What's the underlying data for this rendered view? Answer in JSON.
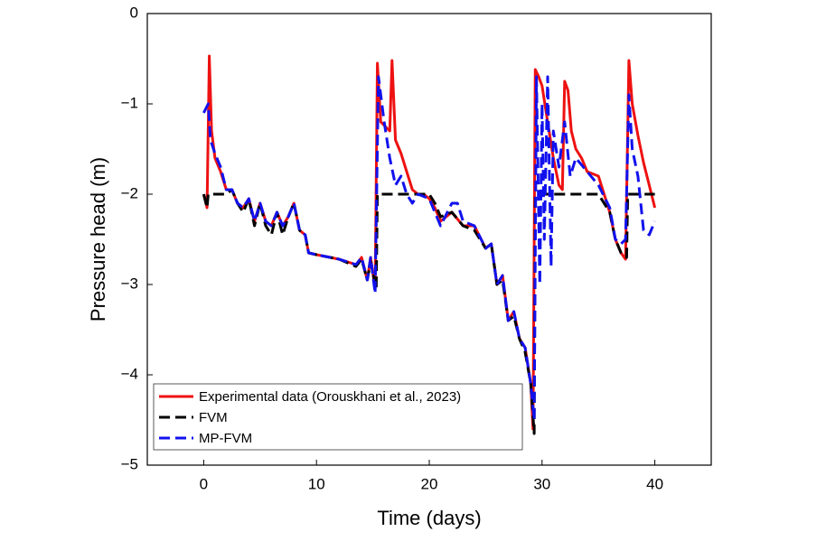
{
  "chart_data": {
    "type": "line",
    "x_label": "Time (days)",
    "y_label": "Pressure head (m)",
    "xlim": [
      -5,
      45
    ],
    "ylim": [
      -5,
      0
    ],
    "xticks": [
      0,
      10,
      20,
      30,
      40
    ],
    "yticks": [
      {
        "value": -5,
        "label": "−5"
      },
      {
        "value": -4,
        "label": "−4"
      },
      {
        "value": -3,
        "label": "−3"
      },
      {
        "value": -2,
        "label": "−2"
      },
      {
        "value": -1,
        "label": "−1"
      },
      0
    ],
    "legend": "lower left",
    "series": [
      {
        "name": "Experimental data (Orouskhani et al., 2023)",
        "color": "#ee1111",
        "dashed": false,
        "x": [
          0,
          0.3,
          0.5,
          0.7,
          1,
          1.5,
          2,
          2.5,
          3,
          3.5,
          4,
          4.5,
          5,
          5.5,
          6,
          6.5,
          7,
          7.5,
          8,
          8.5,
          9,
          9.3,
          10,
          12,
          13.5,
          14,
          14.5,
          14.8,
          15.2,
          15.4,
          15.7,
          16.5,
          16.7,
          17,
          17.5,
          18,
          18.5,
          19,
          19.5,
          20,
          20.5,
          21,
          22,
          23,
          24,
          25,
          25.5,
          26,
          26.5,
          27,
          27.5,
          28,
          28.5,
          29,
          29.2,
          29.4,
          29.7,
          30,
          30.5,
          31,
          31.5,
          31.8,
          32,
          32.3,
          32.6,
          33,
          33.5,
          34,
          35,
          36,
          36.5,
          37,
          37.4,
          37.7,
          38,
          38.5,
          39,
          39.5,
          40
        ],
        "values": [
          -2.0,
          -2.15,
          -0.47,
          -1.3,
          -1.6,
          -1.75,
          -1.95,
          -1.95,
          -2.1,
          -2.15,
          -2.05,
          -2.3,
          -2.1,
          -2.3,
          -2.35,
          -2.2,
          -2.35,
          -2.25,
          -2.1,
          -2.4,
          -2.45,
          -2.65,
          -2.67,
          -2.72,
          -2.78,
          -2.7,
          -2.95,
          -2.7,
          -3.05,
          -0.55,
          -1.2,
          -1.3,
          -0.52,
          -1.4,
          -1.55,
          -1.75,
          -1.95,
          -2.0,
          -2.0,
          -2.05,
          -2.15,
          -2.3,
          -2.2,
          -2.35,
          -2.35,
          -2.6,
          -2.55,
          -3.0,
          -2.9,
          -3.4,
          -3.3,
          -3.6,
          -3.7,
          -4.1,
          -4.6,
          -0.62,
          -0.7,
          -0.8,
          -1.2,
          -1.6,
          -1.9,
          -1.95,
          -0.75,
          -0.85,
          -1.3,
          -1.5,
          -1.6,
          -1.75,
          -1.8,
          -2.2,
          -2.5,
          -2.65,
          -2.72,
          -0.52,
          -1.0,
          -1.35,
          -1.65,
          -1.9,
          -2.15
        ]
      },
      {
        "name": "FVM",
        "color": "#000000",
        "dashed": true,
        "x": [
          0,
          0.3,
          0.4,
          2,
          2.5,
          3,
          3.5,
          4,
          4.5,
          5,
          5.5,
          6,
          6.5,
          7,
          7.5,
          8,
          8.5,
          9,
          9.3,
          10,
          12,
          13.5,
          14,
          14.5,
          14.8,
          15.3,
          15.4,
          20,
          20.5,
          21,
          22,
          23,
          24,
          25,
          25.5,
          26,
          26.5,
          27,
          27.5,
          28,
          28.5,
          29,
          29.3,
          29.4,
          35,
          36,
          36.5,
          37,
          37.5,
          37.6,
          40
        ],
        "values": [
          -2.0,
          -2.15,
          -2.0,
          -2.0,
          -1.95,
          -2.1,
          -2.2,
          -2.05,
          -2.35,
          -2.1,
          -2.35,
          -2.45,
          -2.2,
          -2.45,
          -2.25,
          -2.1,
          -2.4,
          -2.45,
          -2.65,
          -2.67,
          -2.72,
          -2.8,
          -2.72,
          -2.95,
          -2.75,
          -3.05,
          -2.0,
          -2.0,
          -2.1,
          -2.25,
          -2.2,
          -2.35,
          -2.4,
          -2.6,
          -2.55,
          -3.0,
          -2.95,
          -3.4,
          -3.35,
          -3.6,
          -3.75,
          -4.1,
          -4.65,
          -2.0,
          -2.0,
          -2.2,
          -2.5,
          -2.65,
          -2.7,
          -2.0,
          -2.0
        ]
      },
      {
        "name": "MP-FVM",
        "color": "#1111ee",
        "dashed": true,
        "x": [
          0,
          0.4,
          0.6,
          1,
          1.5,
          2,
          2.5,
          3,
          3.5,
          4,
          4.5,
          5,
          5.5,
          6,
          6.5,
          7,
          7.5,
          8,
          8.5,
          9,
          9.3,
          10,
          12,
          13.5,
          14,
          14.5,
          14.8,
          15.2,
          15.5,
          16,
          16.5,
          17,
          17.5,
          18,
          18.5,
          19,
          20,
          20.5,
          21,
          22,
          22.5,
          23,
          24,
          25,
          25.5,
          26,
          26.5,
          27,
          27.5,
          28,
          28.5,
          29,
          29.3,
          29.5,
          29.8,
          30,
          30.2,
          30.5,
          30.8,
          31,
          31.5,
          32,
          32.5,
          33,
          34,
          35,
          36,
          36.5,
          37,
          37.4,
          37.7,
          38,
          38.5,
          39,
          39.5,
          40
        ],
        "values": [
          -1.1,
          -1.0,
          -1.4,
          -1.55,
          -1.7,
          -1.95,
          -1.95,
          -2.1,
          -2.15,
          -2.05,
          -2.3,
          -2.1,
          -2.3,
          -2.35,
          -2.2,
          -2.35,
          -2.25,
          -2.1,
          -2.4,
          -2.45,
          -2.65,
          -2.67,
          -2.72,
          -2.78,
          -2.7,
          -2.95,
          -2.7,
          -3.1,
          -0.7,
          -1.2,
          -1.6,
          -1.9,
          -1.8,
          -2.0,
          -2.1,
          -2.0,
          -2.05,
          -2.2,
          -2.35,
          -2.1,
          -2.1,
          -2.3,
          -2.35,
          -2.6,
          -2.55,
          -3.0,
          -2.9,
          -3.4,
          -3.3,
          -3.6,
          -3.7,
          -4.1,
          -4.5,
          -0.7,
          -3.0,
          -1.0,
          -2.5,
          -0.7,
          -2.8,
          -1.3,
          -1.7,
          -1.2,
          -1.8,
          -1.6,
          -1.75,
          -1.9,
          -2.15,
          -2.5,
          -2.55,
          -2.5,
          -0.9,
          -1.5,
          -1.8,
          -2.4,
          -2.45,
          -2.3
        ]
      }
    ]
  }
}
